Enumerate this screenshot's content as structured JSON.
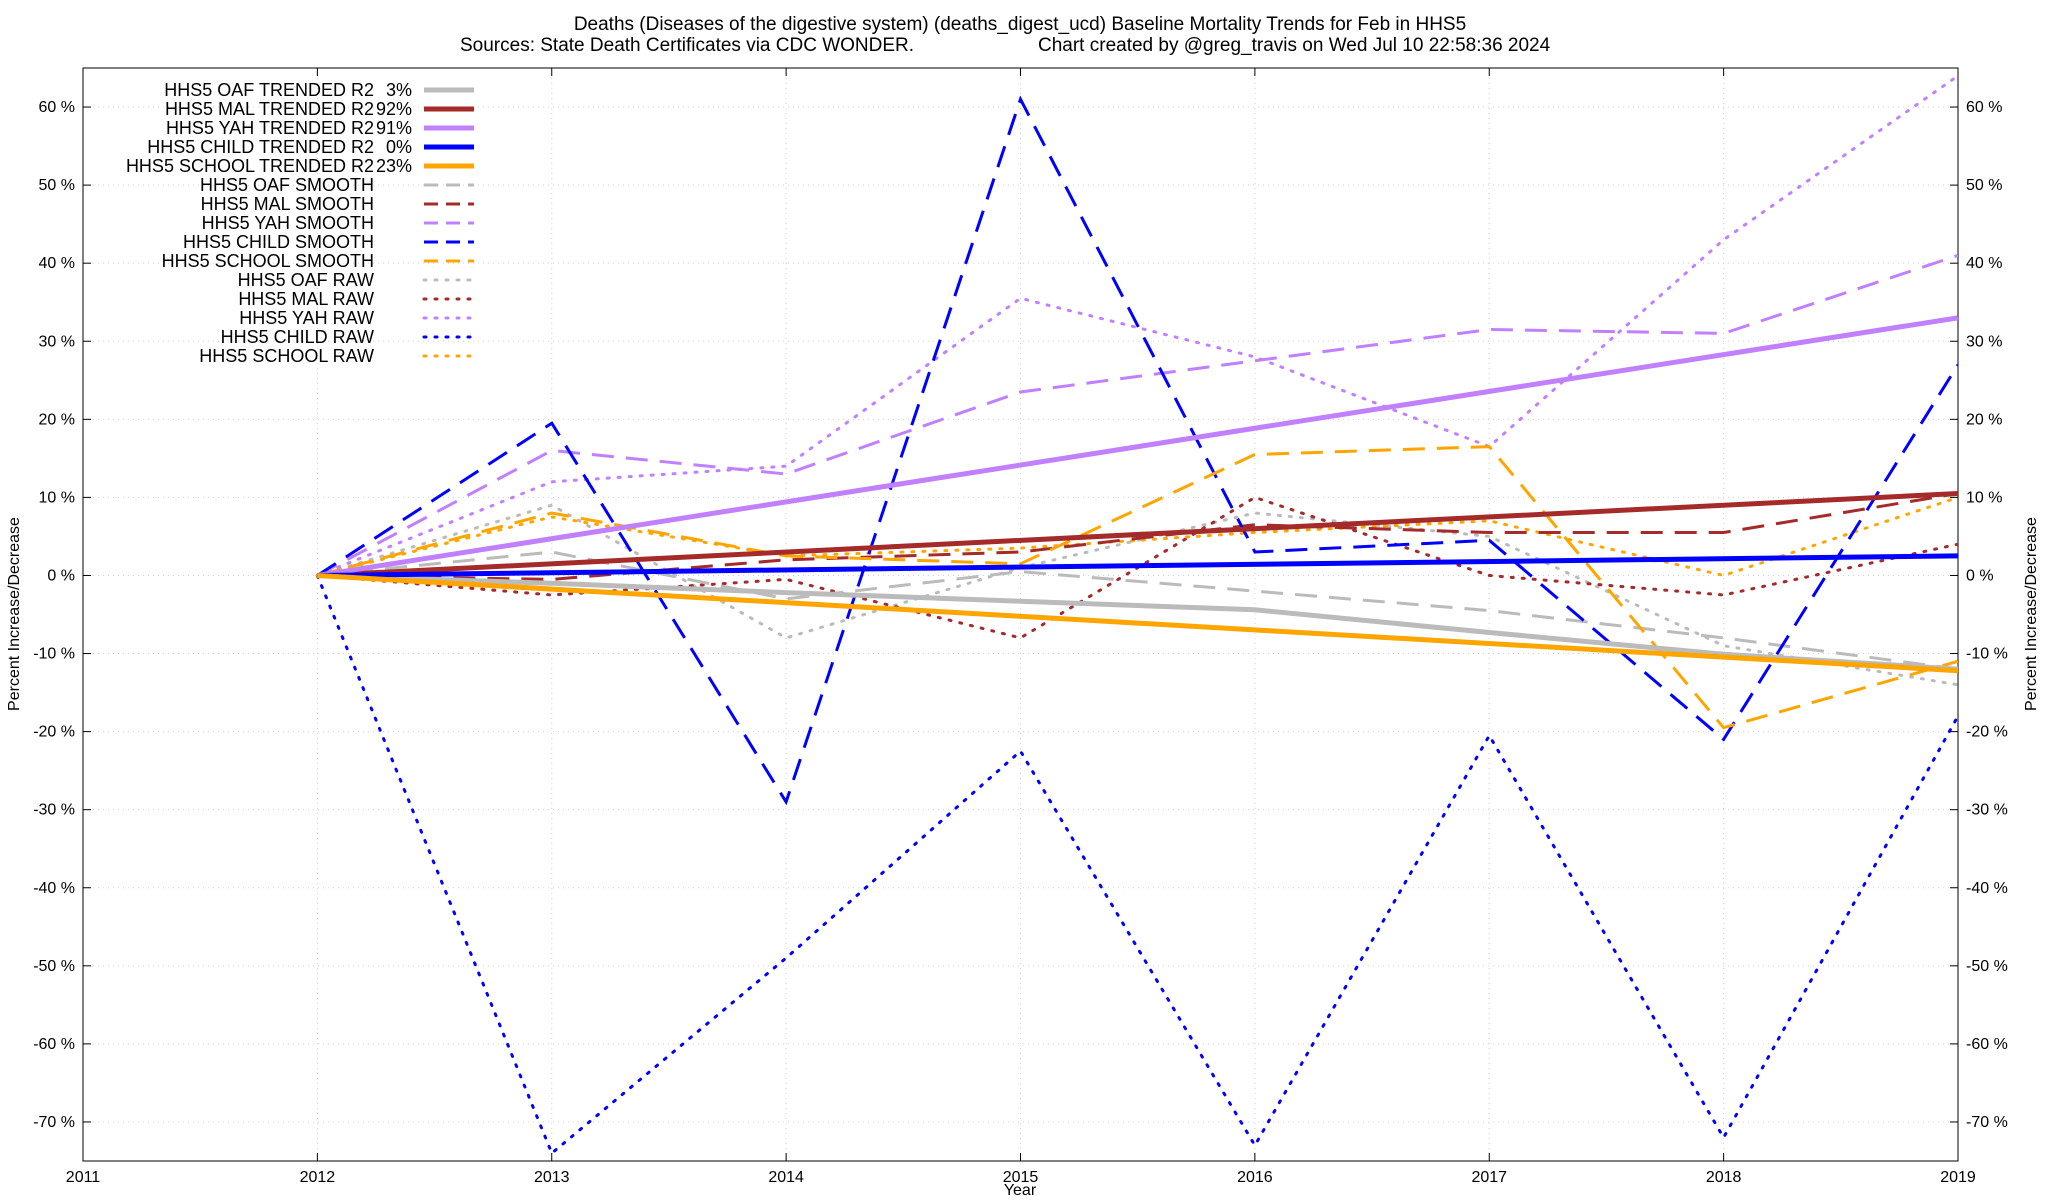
{
  "chart_data": {
    "type": "line",
    "title_line1": "Deaths (Diseases of the digestive system) (deaths_digest_ucd)  Baseline Mortality Trends for Feb in HHS5",
    "title_line2_left": "Sources: State Death Certificates via CDC WONDER.",
    "title_line2_right": "Chart created by @greg_travis on Wed Jul 10 22:58:36 2024",
    "xlabel": "Year",
    "ylabel": "Percent Increase/Decrease",
    "xlim": [
      2011,
      2019
    ],
    "ylim": [
      -75,
      65
    ],
    "grid": true,
    "legend_placement": "top-left",
    "x_ticks": [
      "2011",
      "2012",
      "2013",
      "2014",
      "2015",
      "2016",
      "2017",
      "2018",
      "2019"
    ],
    "y_ticks": [
      "60 %",
      "50 %",
      "40 %",
      "30 %",
      "20 %",
      "10 %",
      "0 %",
      "-10 %",
      "-20 %",
      "-30 %",
      "-40 %",
      "-50 %",
      "-60 %",
      "-70 %"
    ],
    "series": [
      {
        "name": "HHS5 OAF TRENDED R2",
        "r2": "3%",
        "style": "solid",
        "color": "#bbbbbb",
        "x": [
          2012,
          2013,
          2014,
          2015,
          2016,
          2017,
          2018,
          2019
        ],
        "y": [
          0,
          -1,
          -2.2,
          -3.3,
          -4.4,
          -7.3,
          -10.1,
          -12
        ]
      },
      {
        "name": "HHS5 MAL TRENDED R2",
        "r2": "92%",
        "style": "solid",
        "color": "#a52a2a",
        "x": [
          2012,
          2019
        ],
        "y": [
          0,
          10.5
        ]
      },
      {
        "name": "HHS5 YAH TRENDED R2",
        "r2": "91%",
        "style": "solid",
        "color": "#c080ff",
        "x": [
          2012,
          2019
        ],
        "y": [
          0,
          33
        ]
      },
      {
        "name": "HHS5 CHILD TRENDED R2",
        "r2": "0%",
        "style": "solid",
        "color": "#0000ff",
        "x": [
          2012,
          2019
        ],
        "y": [
          0,
          2.5
        ]
      },
      {
        "name": "HHS5 SCHOOL TRENDED R2",
        "r2": "23%",
        "style": "solid",
        "color": "#ffa500",
        "x": [
          2012,
          2019
        ],
        "y": [
          0,
          -12.2
        ]
      },
      {
        "name": "HHS5 OAF SMOOTH",
        "r2": "",
        "style": "dashed",
        "color": "#bbbbbb",
        "x": [
          2012,
          2013,
          2014,
          2015,
          2016,
          2017,
          2018,
          2019
        ],
        "y": [
          0,
          3,
          -3,
          0.5,
          -2,
          -4.5,
          -8,
          -12
        ]
      },
      {
        "name": "HHS5 MAL SMOOTH",
        "r2": "",
        "style": "dashed",
        "color": "#a52a2a",
        "x": [
          2012,
          2013,
          2014,
          2015,
          2016,
          2017,
          2018,
          2019
        ],
        "y": [
          0,
          -0.5,
          2,
          3,
          6.5,
          5.5,
          5.5,
          10.5
        ]
      },
      {
        "name": "HHS5 YAH SMOOTH",
        "r2": "",
        "style": "dashed",
        "color": "#c080ff",
        "x": [
          2012,
          2013,
          2014,
          2015,
          2016,
          2017,
          2018,
          2019
        ],
        "y": [
          0,
          16,
          13,
          23.5,
          27.5,
          31.5,
          31,
          41
        ]
      },
      {
        "name": "HHS5 CHILD SMOOTH",
        "r2": "",
        "style": "dashed",
        "color": "#0000ff",
        "x": [
          2012,
          2013,
          2014,
          2015,
          2016,
          2017,
          2018,
          2019
        ],
        "y": [
          0,
          19.5,
          -29,
          61,
          3,
          4.5,
          -21,
          27
        ]
      },
      {
        "name": "HHS5 SCHOOL SMOOTH",
        "r2": "",
        "style": "dashed",
        "color": "#ffa500",
        "x": [
          2012,
          2013,
          2014,
          2015,
          2016,
          2017,
          2018,
          2019
        ],
        "y": [
          0,
          8,
          2.5,
          1.5,
          15.5,
          16.5,
          -19.5,
          -11
        ]
      },
      {
        "name": "HHS5 OAF RAW",
        "r2": "",
        "style": "dotted",
        "color": "#bbbbbb",
        "x": [
          2012,
          2013,
          2014,
          2015,
          2016,
          2017,
          2018,
          2019
        ],
        "y": [
          0,
          9,
          -8,
          1,
          8,
          5,
          -9,
          -14
        ]
      },
      {
        "name": "HHS5 MAL RAW",
        "r2": "",
        "style": "dotted",
        "color": "#a52a2a",
        "x": [
          2012,
          2013,
          2014,
          2015,
          2016,
          2017,
          2018,
          2019
        ],
        "y": [
          0,
          -2.5,
          -0.5,
          -8,
          10,
          0,
          -2.5,
          4
        ]
      },
      {
        "name": "HHS5 YAH RAW",
        "r2": "",
        "style": "dotted",
        "color": "#c080ff",
        "x": [
          2012,
          2013,
          2014,
          2015,
          2016,
          2017,
          2018,
          2019
        ],
        "y": [
          0,
          12,
          14,
          35.5,
          28,
          16.5,
          43,
          64
        ]
      },
      {
        "name": "HHS5 CHILD RAW",
        "r2": "",
        "style": "dotted",
        "color": "#0000ff",
        "x": [
          2012,
          2013,
          2014,
          2015,
          2016,
          2017,
          2018,
          2019
        ],
        "y": [
          0,
          -74,
          -49,
          -22.5,
          -73,
          -20.5,
          -72,
          -18
        ]
      },
      {
        "name": "HHS5 SCHOOL RAW",
        "r2": "",
        "style": "dotted",
        "color": "#ffa500",
        "x": [
          2012,
          2013,
          2014,
          2015,
          2016,
          2017,
          2018,
          2019
        ],
        "y": [
          0,
          7.5,
          2.5,
          3.5,
          5.5,
          7,
          0,
          10
        ]
      }
    ]
  }
}
